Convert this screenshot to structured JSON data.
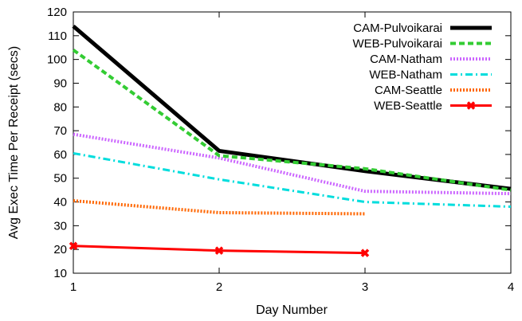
{
  "chart_data": {
    "type": "line",
    "xlabel": "Day Number",
    "ylabel": "Avg Exec Time Per Receipt (secs)",
    "xlim": [
      1,
      4
    ],
    "ylim": [
      10,
      120
    ],
    "xticks": [
      1,
      2,
      3,
      4
    ],
    "yticks": [
      10,
      20,
      30,
      40,
      50,
      60,
      70,
      80,
      90,
      100,
      110,
      120
    ],
    "grid": false,
    "legend_position": "top-right",
    "series": [
      {
        "name": "CAM-Pulvoikarai",
        "color": "#000000",
        "style": "solid",
        "x": [
          1,
          2,
          3,
          4
        ],
        "y": [
          114,
          61.5,
          53,
          45.5
        ]
      },
      {
        "name": "WEB-Pulvoikarai",
        "color": "#33cc33",
        "style": "dashed",
        "x": [
          1,
          2,
          3,
          4
        ],
        "y": [
          104,
          59.5,
          54,
          45
        ]
      },
      {
        "name": "CAM-Natham",
        "color": "#cc66ff",
        "style": "dotted",
        "x": [
          1,
          2,
          3,
          4
        ],
        "y": [
          68.5,
          58.5,
          44.5,
          43.5
        ]
      },
      {
        "name": "WEB-Natham",
        "color": "#00dddd",
        "style": "dashdot",
        "x": [
          1,
          2,
          3,
          4
        ],
        "y": [
          60.5,
          49.5,
          40,
          38
        ]
      },
      {
        "name": "CAM-Seattle",
        "color": "#ff6600",
        "style": "dotted",
        "x": [
          1,
          2,
          3
        ],
        "y": [
          40.5,
          35.5,
          35
        ]
      },
      {
        "name": "WEB-Seattle",
        "color": "#ff0000",
        "style": "solid-marker",
        "x": [
          1,
          2,
          3
        ],
        "y": [
          21.5,
          19.5,
          18.5
        ]
      }
    ]
  }
}
